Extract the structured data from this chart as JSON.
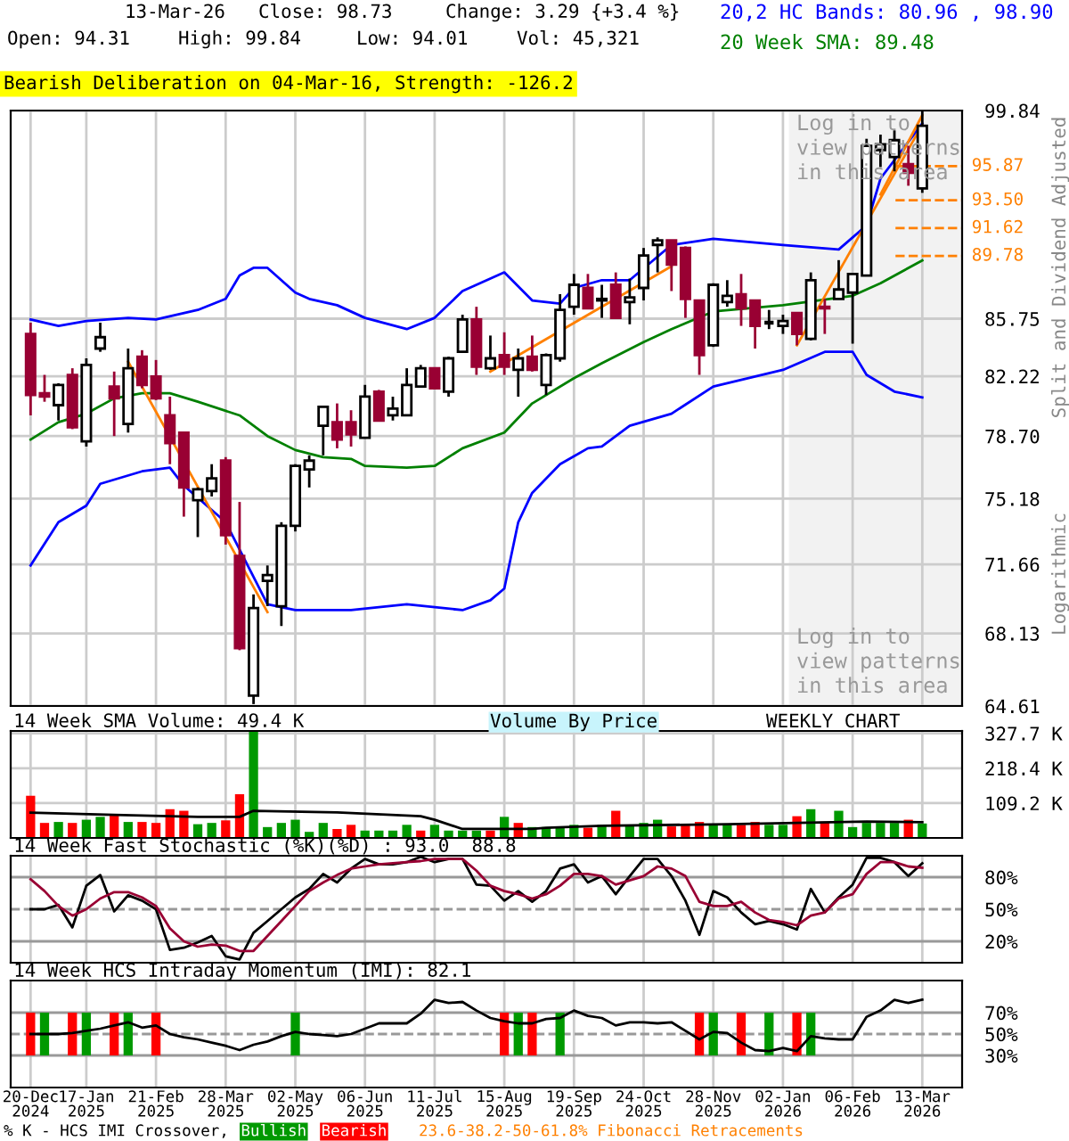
{
  "chart_data": [
    {
      "type": "candlestick",
      "annotations": [
        "13-Mar-26",
        "Close: 98.73",
        "Change: 3.29 {+3.4 %}",
        "Open: 94.31",
        "High: 99.84",
        "Low: 94.01",
        "Vol: 45,321",
        "Bearish Deliberation on 04-Mar-16, Strength: -126.2",
        "Log in to\nview patterns\nin this area",
        "Log in to\nview patterns\nin this area",
        "Logarithmic",
        "23.6-38.2-50-61.8% Fibonacci Retracements"
      ],
      "ylabel": "Split and Dividend Adjusted",
      "x": [
        "2024-12-20",
        "2024-12-27",
        "2025-01-03",
        "2025-01-10",
        "2025-01-17",
        "2025-01-24",
        "2025-01-31",
        "2025-02-07",
        "2025-02-14",
        "2025-02-21",
        "2025-02-28",
        "2025-03-07",
        "2025-03-14",
        "2025-03-21",
        "2025-03-28",
        "2025-04-04",
        "2025-04-11",
        "2025-04-18",
        "2025-04-25",
        "2025-05-02",
        "2025-05-09",
        "2025-05-16",
        "2025-05-23",
        "2025-05-30",
        "2025-06-06",
        "2025-06-13",
        "2025-06-20",
        "2025-06-27",
        "2025-07-04",
        "2025-07-11",
        "2025-07-18",
        "2025-07-25",
        "2025-08-01",
        "2025-08-08",
        "2025-08-15",
        "2025-08-22",
        "2025-08-29",
        "2025-09-05",
        "2025-09-12",
        "2025-09-19",
        "2025-09-26",
        "2025-10-03",
        "2025-10-10",
        "2025-10-17",
        "2025-10-24",
        "2025-10-31",
        "2025-11-07",
        "2025-11-14",
        "2025-11-21",
        "2025-11-28",
        "2025-12-05",
        "2025-12-12",
        "2025-12-19",
        "2025-12-26",
        "2026-01-02",
        "2026-01-09",
        "2026-01-16",
        "2026-01-23",
        "2026-01-30",
        "2026-02-06",
        "2026-02-13",
        "2026-02-20",
        "2026-02-27",
        "2026-03-06",
        "2026-03-13"
      ],
      "ohlc": [
        [
          84.8,
          85.5,
          79.9,
          81.1
        ],
        [
          81.2,
          82.3,
          80.7,
          81.0
        ],
        [
          80.5,
          81.8,
          79.6,
          81.7
        ],
        [
          82.3,
          82.7,
          79.1,
          79.2
        ],
        [
          78.4,
          83.3,
          78.1,
          82.9
        ],
        [
          83.9,
          85.5,
          83.7,
          84.6
        ],
        [
          81.6,
          82.5,
          78.7,
          80.9
        ],
        [
          79.4,
          83.9,
          78.9,
          82.7
        ],
        [
          83.4,
          83.8,
          81.5,
          81.7
        ],
        [
          82.2,
          83.2,
          80.8,
          80.9
        ],
        [
          79.9,
          81.0,
          77.1,
          78.3
        ],
        [
          78.9,
          78.9,
          74.2,
          75.8
        ],
        [
          75.1,
          75.8,
          73.1,
          75.7
        ],
        [
          75.6,
          77.1,
          75.3,
          76.3
        ],
        [
          77.3,
          77.5,
          72.7,
          73.2
        ],
        [
          72.1,
          75.0,
          67.3,
          67.4
        ],
        [
          65.1,
          70.1,
          64.7,
          69.4
        ],
        [
          70.8,
          71.6,
          69.5,
          71.1
        ],
        [
          69.5,
          73.9,
          68.5,
          73.7
        ],
        [
          73.7,
          77.1,
          73.4,
          77.0
        ],
        [
          76.8,
          77.6,
          75.8,
          77.3
        ],
        [
          79.3,
          80.4,
          77.6,
          80.4
        ],
        [
          79.5,
          80.6,
          78.0,
          78.5
        ],
        [
          79.5,
          80.2,
          78.1,
          78.8
        ],
        [
          78.6,
          81.7,
          78.6,
          81.0
        ],
        [
          81.3,
          81.4,
          79.6,
          79.6
        ],
        [
          79.9,
          81.0,
          79.6,
          80.3
        ],
        [
          79.9,
          82.7,
          79.9,
          81.7
        ],
        [
          81.6,
          82.9,
          81.6,
          82.7
        ],
        [
          82.7,
          82.7,
          81.5,
          81.5
        ],
        [
          81.3,
          83.4,
          81.0,
          83.3
        ],
        [
          83.7,
          86.0,
          83.7,
          85.7
        ],
        [
          85.7,
          86.5,
          82.3,
          82.8
        ],
        [
          82.7,
          84.7,
          82.6,
          83.3
        ],
        [
          83.5,
          84.9,
          82.3,
          82.8
        ],
        [
          82.6,
          83.9,
          81.0,
          83.3
        ],
        [
          83.4,
          84.7,
          82.5,
          82.6
        ],
        [
          81.7,
          83.6,
          81.1,
          83.5
        ],
        [
          83.3,
          87.3,
          83.1,
          86.3
        ],
        [
          86.5,
          88.6,
          86.0,
          87.9
        ],
        [
          87.7,
          88.6,
          86.4,
          86.4
        ],
        [
          86.9,
          87.9,
          85.8,
          87.0
        ],
        [
          87.9,
          88.7,
          85.8,
          85.8
        ],
        [
          86.8,
          88.3,
          85.4,
          87.1
        ],
        [
          87.7,
          90.3,
          86.9,
          89.8
        ],
        [
          90.5,
          91.0,
          88.7,
          90.8
        ],
        [
          90.8,
          90.8,
          87.5,
          89.2
        ],
        [
          90.3,
          90.4,
          85.8,
          87.0
        ],
        [
          86.9,
          86.9,
          82.3,
          83.5
        ],
        [
          84.1,
          88.0,
          84.0,
          87.9
        ],
        [
          86.8,
          88.2,
          86.5,
          87.2
        ],
        [
          87.3,
          88.6,
          85.3,
          86.4
        ],
        [
          86.9,
          86.9,
          83.9,
          85.3
        ],
        [
          85.5,
          86.3,
          85.1,
          85.5
        ],
        [
          85.3,
          86.0,
          84.8,
          85.6
        ],
        [
          86.1,
          86.1,
          84.1,
          84.8
        ],
        [
          84.5,
          88.7,
          84.4,
          88.2
        ],
        [
          86.5,
          87.0,
          84.8,
          86.4
        ],
        [
          87.0,
          89.5,
          87.0,
          87.6
        ],
        [
          87.4,
          88.6,
          84.2,
          88.6
        ],
        [
          88.5,
          97.8,
          88.5,
          97.3
        ],
        [
          97.0,
          98.1,
          95.8,
          97.4
        ],
        [
          96.5,
          98.4,
          95.5,
          97.7
        ],
        [
          96.0,
          97.3,
          94.5,
          95.4
        ],
        [
          94.31,
          99.84,
          94.01,
          98.73
        ]
      ],
      "colors": [
        "#990033",
        "#990033",
        "#ffffff",
        "#990033",
        "#ffffff",
        "#ffffff",
        "#990033",
        "#ffffff",
        "#990033",
        "#990033",
        "#990033",
        "#990033",
        "#ffffff",
        "#ffffff",
        "#990033",
        "#990033",
        "#ffffff",
        "#ffffff",
        "#ffffff",
        "#ffffff",
        "#ffffff",
        "#ffffff",
        "#990033",
        "#990033",
        "#ffffff",
        "#990033",
        "#ffffff",
        "#ffffff",
        "#ffffff",
        "#990033",
        "#ffffff",
        "#ffffff",
        "#990033",
        "#ffffff",
        "#990033",
        "#ffffff",
        "#990033",
        "#ffffff",
        "#ffffff",
        "#ffffff",
        "#990033",
        "#ffffff",
        "#990033",
        "#ffffff",
        "#ffffff",
        "#ffffff",
        "#990033",
        "#990033",
        "#990033",
        "#ffffff",
        "#ffffff",
        "#990033",
        "#990033",
        "#000000",
        "#ffffff",
        "#990033",
        "#ffffff",
        "#990033",
        "#ffffff",
        "#ffffff",
        "#ffffff",
        "#ffffff",
        "#ffffff",
        "#990033",
        "#ffffff"
      ],
      "series": [
        {
          "type": "line",
          "name": "20,2 HC Bands: 80.96 , 98.90",
          "color": "#0000ff",
          "x": [
            "2024-12-20",
            "2025-01-03",
            "2025-01-17",
            "2025-02-07",
            "2025-02-21",
            "2025-03-14",
            "2025-03-28",
            "2025-04-04",
            "2025-04-11",
            "2025-04-18",
            "2025-05-02",
            "2025-05-09",
            "2025-05-23",
            "2025-06-06",
            "2025-06-27",
            "2025-07-11",
            "2025-07-25",
            "2025-08-15",
            "2025-08-29",
            "2025-09-12",
            "2025-09-19",
            "2025-10-03",
            "2025-10-17",
            "2025-11-07",
            "2025-11-28",
            "2026-01-02",
            "2026-01-30",
            "2026-02-13",
            "2026-02-20",
            "2026-03-13"
          ],
          "values": [
            85.7,
            85.3,
            85.6,
            85.8,
            85.7,
            86.3,
            87.0,
            88.5,
            89.0,
            89.0,
            87.4,
            87.0,
            86.6,
            85.8,
            85.1,
            85.8,
            87.5,
            88.7,
            86.9,
            86.7,
            87.7,
            88.2,
            88.2,
            90.5,
            90.9,
            90.5,
            90.2,
            91.8,
            95.0,
            98.9
          ]
        },
        {
          "type": "line",
          "color": "#0000ff",
          "x": [
            "2024-12-20",
            "2025-01-03",
            "2025-01-17",
            "2025-01-24",
            "2025-02-14",
            "2025-02-28",
            "2025-03-07",
            "2025-03-28",
            "2025-04-11",
            "2025-04-18",
            "2025-05-02",
            "2025-05-30",
            "2025-06-27",
            "2025-07-25",
            "2025-08-08",
            "2025-08-15",
            "2025-08-22",
            "2025-08-29",
            "2025-09-12",
            "2025-09-26",
            "2025-10-03",
            "2025-10-17",
            "2025-11-07",
            "2025-11-28",
            "2026-01-02",
            "2026-01-23",
            "2026-02-06",
            "2026-02-13",
            "2026-02-27",
            "2026-03-13"
          ],
          "values": [
            71.6,
            73.9,
            74.8,
            76.0,
            76.7,
            76.9,
            75.9,
            73.9,
            71.0,
            69.6,
            69.3,
            69.3,
            69.6,
            69.3,
            69.8,
            70.4,
            73.9,
            75.5,
            77.1,
            78.0,
            78.1,
            79.3,
            80.0,
            81.6,
            82.6,
            83.7,
            83.7,
            82.3,
            81.3,
            80.96
          ]
        },
        {
          "type": "line",
          "name": "20 Week SMA: 89.48",
          "color": "#008000",
          "x": [
            "2024-12-20",
            "2025-01-03",
            "2025-01-17",
            "2025-01-31",
            "2025-02-14",
            "2025-02-28",
            "2025-03-14",
            "2025-04-04",
            "2025-04-18",
            "2025-05-02",
            "2025-05-16",
            "2025-05-30",
            "2025-06-06",
            "2025-06-27",
            "2025-07-11",
            "2025-07-25",
            "2025-08-15",
            "2025-08-29",
            "2025-09-19",
            "2025-10-03",
            "2025-10-24",
            "2025-11-07",
            "2025-11-28",
            "2026-01-02",
            "2026-02-06",
            "2026-02-20",
            "2026-03-13"
          ],
          "values": [
            78.5,
            79.5,
            80.0,
            80.9,
            81.2,
            81.2,
            80.7,
            79.9,
            78.7,
            77.9,
            77.5,
            77.4,
            77.0,
            76.9,
            77.0,
            78.0,
            78.9,
            80.6,
            82.1,
            83.0,
            84.3,
            85.1,
            86.2,
            86.6,
            87.2,
            88.0,
            89.48
          ]
        },
        {
          "type": "line",
          "color": "#ff8000",
          "x": [
            "2025-02-07",
            "2025-04-18"
          ],
          "values": [
            83.1,
            69.2
          ]
        },
        {
          "type": "line",
          "color": "#ff8000",
          "x": [
            "2025-08-08",
            "2025-11-07"
          ],
          "values": [
            82.5,
            89.1
          ]
        },
        {
          "type": "line",
          "color": "#ff8000",
          "x": [
            "2026-01-09",
            "2026-03-13"
          ],
          "values": [
            84.1,
            98.8
          ]
        },
        {
          "type": "line",
          "color": "#ff8000",
          "x": [
            "2026-02-20",
            "2026-03-13"
          ],
          "values": [
            93.9,
            99.5
          ]
        }
      ],
      "ylim": [
        64.61,
        99.84
      ],
      "log": true,
      "yticks": [
        64.61,
        68.13,
        71.66,
        75.18,
        {
          "value": 78.7,
          "label": "78.70"
        },
        82.22,
        85.75,
        99.84
      ],
      "xlim": [
        "2024-12-10",
        "2026-04-02"
      ],
      "xticks": [
        {
          "value": "2024-12-20",
          "label": null
        },
        {
          "value": "2025-01-17",
          "label": null
        },
        {
          "value": "2025-02-21",
          "label": null
        },
        {
          "value": "2025-03-28",
          "label": null
        },
        {
          "value": "2025-05-02",
          "label": null
        },
        {
          "value": "2025-06-06",
          "label": null
        },
        {
          "value": "2025-07-11",
          "label": null
        },
        {
          "value": "2025-08-15",
          "label": null
        },
        {
          "value": "2025-09-19",
          "label": null
        },
        {
          "value": "2025-10-24",
          "label": null
        },
        {
          "value": "2025-11-28",
          "label": null
        },
        {
          "value": "2026-01-02",
          "label": null
        },
        {
          "value": "2026-02-06",
          "label": null
        },
        {
          "value": "2026-03-13",
          "label": null
        }
      ],
      "tick_labels": "y",
      "grid": true,
      "legend": "top right",
      "bands": [
        {
          "axis": "x",
          "from": "2026-01-05",
          "to": "2026-04-02",
          "color": "#f2f2f2"
        }
      ],
      "ref_lines": [
        {
          "axis": "y",
          "value": 95.87,
          "label": "95.87",
          "color": "#ff8000",
          "line_style": "dashed"
        },
        {
          "axis": "y",
          "value": 93.5,
          "label": "93.50",
          "color": "#ff8000",
          "line_style": "dashed"
        },
        {
          "axis": "y",
          "value": 91.62,
          "label": "91.62",
          "color": "#ff8000",
          "line_style": "dashed"
        },
        {
          "axis": "y",
          "value": 89.78,
          "label": "89.78",
          "color": "#ff8000",
          "line_style": "dashed"
        }
      ]
    },
    {
      "type": "bar",
      "title": "14 Week SMA Volume: 49.4 K",
      "annotations": [
        "Volume By Price",
        "WEEKLY CHART"
      ],
      "x": [
        "2024-12-20",
        "2024-12-27",
        "2025-01-03",
        "2025-01-10",
        "2025-01-17",
        "2025-01-24",
        "2025-01-31",
        "2025-02-07",
        "2025-02-14",
        "2025-02-21",
        "2025-02-28",
        "2025-03-07",
        "2025-03-14",
        "2025-03-21",
        "2025-03-28",
        "2025-04-04",
        "2025-04-11",
        "2025-04-18",
        "2025-04-25",
        "2025-05-02",
        "2025-05-09",
        "2025-05-16",
        "2025-05-23",
        "2025-05-30",
        "2025-06-06",
        "2025-06-13",
        "2025-06-20",
        "2025-06-27",
        "2025-07-04",
        "2025-07-11",
        "2025-07-18",
        "2025-07-25",
        "2025-08-01",
        "2025-08-08",
        "2025-08-15",
        "2025-08-22",
        "2025-08-29",
        "2025-09-05",
        "2025-09-12",
        "2025-09-19",
        "2025-09-26",
        "2025-10-03",
        "2025-10-10",
        "2025-10-17",
        "2025-10-24",
        "2025-10-31",
        "2025-11-07",
        "2025-11-14",
        "2025-11-21",
        "2025-11-28",
        "2025-12-05",
        "2025-12-12",
        "2025-12-19",
        "2025-12-26",
        "2026-01-02",
        "2026-01-09",
        "2026-01-16",
        "2026-01-23",
        "2026-01-30",
        "2026-02-06",
        "2026-02-13",
        "2026-02-20",
        "2026-02-27",
        "2026-03-06",
        "2026-03-13"
      ],
      "series": [
        {
          "values": [
            132,
            47,
            50,
            47,
            57,
            66,
            73,
            50,
            50,
            47,
            90,
            85,
            43,
            47,
            55,
            137,
            333,
            34,
            47,
            57,
            19,
            47,
            28,
            41,
            23,
            23,
            23,
            41,
            23,
            41,
            23,
            23,
            23,
            23,
            66,
            47,
            34,
            34,
            34,
            41,
            32,
            41,
            85,
            38,
            47,
            57,
            36,
            41,
            50,
            41,
            41,
            41,
            50,
            41,
            41,
            68,
            90,
            51,
            85,
            34,
            47,
            47,
            47,
            57,
            45.3
          ],
          "colors": [
            "#ff0000",
            "#ff0000",
            "#009900",
            "#ff0000",
            "#009900",
            "#009900",
            "#ff0000",
            "#009900",
            "#ff0000",
            "#ff0000",
            "#ff0000",
            "#ff0000",
            "#009900",
            "#009900",
            "#ff0000",
            "#ff0000",
            "#009900",
            "#009900",
            "#009900",
            "#009900",
            "#009900",
            "#009900",
            "#ff0000",
            "#ff0000",
            "#009900",
            "#009900",
            "#009900",
            "#009900",
            "#ff0000",
            "#009900",
            "#009900",
            "#009900",
            "#009900",
            "#ff0000",
            "#009900",
            "#ff0000",
            "#009900",
            "#009900",
            "#009900",
            "#009900",
            "#ff0000",
            "#009900",
            "#ff0000",
            "#009900",
            "#009900",
            "#009900",
            "#ff0000",
            "#ff0000",
            "#ff0000",
            "#009900",
            "#009900",
            "#ff0000",
            "#ff0000",
            "#009900",
            "#009900",
            "#ff0000",
            "#009900",
            "#ff0000",
            "#009900",
            "#009900",
            "#009900",
            "#009900",
            "#009900",
            "#ff0000",
            "#009900"
          ]
        },
        {
          "type": "line",
          "color": "#000000",
          "x": [
            "2024-12-20",
            "2025-01-31",
            "2025-03-14",
            "2025-04-04",
            "2025-04-11",
            "2025-05-23",
            "2025-07-04",
            "2025-07-11",
            "2025-07-25",
            "2025-08-29",
            "2025-09-05",
            "2025-10-03",
            "2025-12-05",
            "2026-02-13",
            "2026-03-13"
          ],
          "values": [
            79,
            72,
            66,
            66,
            85,
            80,
            68,
            57,
            28,
            28,
            32,
            38,
            43,
            51,
            49.4
          ]
        }
      ],
      "ylim": [
        0,
        335
      ],
      "yticks": [
        {
          "value": 109.2,
          "label": "109.2 K"
        },
        {
          "value": 218.4,
          "label": "218.4 K"
        },
        {
          "value": 327.7,
          "label": "327.7 K"
        }
      ],
      "xlim": [
        "2024-12-10",
        "2026-04-02"
      ],
      "xticks": [
        {
          "value": "2024-12-20",
          "label": null
        },
        {
          "value": "2025-01-17",
          "label": null
        },
        {
          "value": "2025-02-21",
          "label": null
        },
        {
          "value": "2025-03-28",
          "label": null
        },
        {
          "value": "2025-05-02",
          "label": null
        },
        {
          "value": "2025-06-06",
          "label": null
        },
        {
          "value": "2025-07-11",
          "label": null
        },
        {
          "value": "2025-08-15",
          "label": null
        },
        {
          "value": "2025-09-19",
          "label": null
        },
        {
          "value": "2025-10-24",
          "label": null
        },
        {
          "value": "2025-11-28",
          "label": null
        },
        {
          "value": "2026-01-02",
          "label": null
        },
        {
          "value": "2026-02-06",
          "label": null
        },
        {
          "value": "2026-03-13",
          "label": null
        }
      ],
      "tick_labels": "y",
      "grid": true
    },
    {
      "type": "line",
      "title": "14 Week Fast Stochastic (%K)(%D) : 93.0  88.8",
      "x": [
        "2024-12-20",
        "2024-12-27",
        "2025-01-03",
        "2025-01-10",
        "2025-01-17",
        "2025-01-24",
        "2025-01-31",
        "2025-02-07",
        "2025-02-14",
        "2025-02-21",
        "2025-02-28",
        "2025-03-07",
        "2025-03-14",
        "2025-03-21",
        "2025-03-28",
        "2025-04-04",
        "2025-04-11",
        "2025-04-18",
        "2025-04-25",
        "2025-05-02",
        "2025-05-09",
        "2025-05-16",
        "2025-05-23",
        "2025-05-30",
        "2025-06-06",
        "2025-06-13",
        "2025-06-20",
        "2025-06-27",
        "2025-07-04",
        "2025-07-11",
        "2025-07-18",
        "2025-07-25",
        "2025-08-01",
        "2025-08-08",
        "2025-08-15",
        "2025-08-22",
        "2025-08-29",
        "2025-09-05",
        "2025-09-12",
        "2025-09-19",
        "2025-09-26",
        "2025-10-03",
        "2025-10-10",
        "2025-10-17",
        "2025-10-24",
        "2025-10-31",
        "2025-11-07",
        "2025-11-14",
        "2025-11-21",
        "2025-11-28",
        "2025-12-05",
        "2025-12-12",
        "2025-12-19",
        "2025-12-26",
        "2026-01-02",
        "2026-01-09",
        "2026-01-16",
        "2026-01-23",
        "2026-01-30",
        "2026-02-06",
        "2026-02-13",
        "2026-02-20",
        "2026-02-27",
        "2026-03-06",
        "2026-03-13"
      ],
      "series": [
        {
          "color": "#000000",
          "values": [
            50,
            50,
            54,
            33,
            72,
            82,
            48,
            63,
            58,
            50,
            12,
            14,
            19,
            25,
            6,
            3,
            28,
            39,
            50,
            61,
            69,
            83,
            75,
            88,
            97,
            92,
            92,
            94,
            99,
            94,
            97,
            97,
            73,
            72,
            58,
            67,
            57,
            67,
            88,
            92,
            75,
            81,
            64,
            81,
            97,
            97,
            81,
            58,
            26,
            67,
            61,
            47,
            36,
            39,
            36,
            31,
            69,
            47,
            61,
            73,
            98,
            98,
            94,
            81,
            93.0
          ]
        },
        {
          "color": "#990033",
          "values": [
            78,
            67,
            53,
            44,
            50,
            60,
            66,
            66,
            61,
            53,
            32,
            20,
            15,
            17,
            16,
            11,
            11,
            25,
            39,
            53,
            67,
            75,
            82,
            88,
            90,
            92,
            93,
            94,
            95,
            97,
            97,
            97,
            86,
            72,
            67,
            64,
            60,
            64,
            72,
            83,
            83,
            81,
            73,
            77,
            81,
            90,
            88,
            81,
            57,
            53,
            53,
            57,
            47,
            40,
            38,
            35,
            44,
            47,
            60,
            64,
            83,
            94,
            94,
            90,
            88.8
          ]
        }
      ],
      "ylim": [
        0,
        100
      ],
      "yticks": [
        {
          "value": 20,
          "label": "20%"
        },
        {
          "value": 50,
          "label": "50%"
        },
        {
          "value": 80,
          "label": "80%"
        }
      ],
      "xlim": [
        "2024-12-10",
        "2026-04-02"
      ],
      "xticks": [
        {
          "value": "2024-12-20",
          "label": null
        },
        {
          "value": "2025-01-17",
          "label": null
        },
        {
          "value": "2025-02-21",
          "label": null
        },
        {
          "value": "2025-03-28",
          "label": null
        },
        {
          "value": "2025-05-02",
          "label": null
        },
        {
          "value": "2025-06-06",
          "label": null
        },
        {
          "value": "2025-07-11",
          "label": null
        },
        {
          "value": "2025-08-15",
          "label": null
        },
        {
          "value": "2025-09-19",
          "label": null
        },
        {
          "value": "2025-10-24",
          "label": null
        },
        {
          "value": "2025-11-28",
          "label": null
        },
        {
          "value": "2026-01-02",
          "label": null
        },
        {
          "value": "2026-02-06",
          "label": null
        },
        {
          "value": "2026-03-13",
          "label": null
        }
      ],
      "tick_labels": "y",
      "grid": "x",
      "ref_lines": [
        {
          "axis": "y",
          "value": 20,
          "color": "#999999"
        },
        {
          "axis": "y",
          "value": 50,
          "color": "#999999",
          "line_style": "dashed"
        },
        {
          "axis": "y",
          "value": 80,
          "color": "#999999"
        }
      ]
    },
    {
      "type": "line",
      "title": "14 Week HCS Intraday Momentum (IMI): 82.1",
      "legend": "bottom",
      "legend_title": "% K - HCS IMI Crossover,",
      "x": [
        "2024-12-20",
        "2024-12-27",
        "2025-01-03",
        "2025-01-10",
        "2025-01-17",
        "2025-01-24",
        "2025-01-31",
        "2025-02-07",
        "2025-02-14",
        "2025-02-21",
        "2025-02-28",
        "2025-03-07",
        "2025-03-14",
        "2025-03-21",
        "2025-03-28",
        "2025-04-04",
        "2025-04-11",
        "2025-04-18",
        "2025-04-25",
        "2025-05-02",
        "2025-05-09",
        "2025-05-16",
        "2025-05-23",
        "2025-05-30",
        "2025-06-06",
        "2025-06-13",
        "2025-06-20",
        "2025-06-27",
        "2025-07-04",
        "2025-07-11",
        "2025-07-18",
        "2025-07-25",
        "2025-08-01",
        "2025-08-08",
        "2025-08-15",
        "2025-08-22",
        "2025-08-29",
        "2025-09-05",
        "2025-09-12",
        "2025-09-19",
        "2025-09-26",
        "2025-10-03",
        "2025-10-10",
        "2025-10-17",
        "2025-10-24",
        "2025-10-31",
        "2025-11-07",
        "2025-11-14",
        "2025-11-21",
        "2025-11-28",
        "2025-12-05",
        "2025-12-12",
        "2025-12-19",
        "2025-12-26",
        "2026-01-02",
        "2026-01-09",
        "2026-01-16",
        "2026-01-23",
        "2026-01-30",
        "2026-02-06",
        "2026-02-13",
        "2026-02-20",
        "2026-02-27",
        "2026-03-06",
        "2026-03-13"
      ],
      "series": [
        {
          "color": "#000000",
          "values": [
            50,
            50,
            50,
            51,
            53,
            55,
            58,
            61,
            56,
            58,
            50,
            47,
            45,
            42,
            39,
            35,
            40,
            43,
            48,
            52,
            50,
            49,
            48,
            50,
            55,
            60,
            60,
            60,
            69,
            82,
            79,
            80,
            72,
            65,
            62,
            60,
            60,
            64,
            65,
            72,
            67,
            65,
            58,
            61,
            61,
            60,
            61,
            53,
            45,
            52,
            51,
            42,
            35,
            34,
            37,
            34,
            48,
            46,
            45,
            45,
            66,
            72,
            82,
            79,
            82.1
          ]
        },
        {
          "type": "bar",
          "name": "Bullish",
          "color": "#009900",
          "x": [
            "2024-12-27",
            "2025-01-17",
            "2025-02-07",
            "2025-05-02",
            "2025-08-22",
            "2025-09-12",
            "2025-11-28",
            "2025-12-26",
            "2026-01-16"
          ],
          "base": [
            30,
            30,
            30,
            30,
            30,
            30,
            30,
            30,
            30
          ],
          "values": [
            40,
            40,
            40,
            40,
            40,
            40,
            40,
            40,
            40
          ]
        },
        {
          "type": "bar",
          "name": "Bearish",
          "color": "#ff0000",
          "x": [
            "2024-12-20",
            "2025-01-10",
            "2025-01-31",
            "2025-02-21",
            "2025-08-15",
            "2025-08-29",
            "2025-11-21",
            "2025-12-12",
            "2026-01-09"
          ],
          "base": [
            30,
            30,
            30,
            30,
            30,
            30,
            30,
            30,
            30
          ],
          "values": [
            40,
            40,
            40,
            40,
            40,
            40,
            40,
            40,
            40
          ]
        }
      ],
      "ylim": [
        0,
        100
      ],
      "yticks": [
        {
          "value": 30,
          "label": "30%"
        },
        {
          "value": 50,
          "label": "50%"
        },
        {
          "value": 70,
          "label": "70%"
        }
      ],
      "xlim": [
        "2024-12-10",
        "2026-04-02"
      ],
      "xticks": [
        {
          "value": "2024-12-20",
          "label": "20-Dec\n2024"
        },
        {
          "value": "2025-01-17",
          "label": "17-Jan\n2025"
        },
        {
          "value": "2025-02-21",
          "label": "21-Feb\n2025"
        },
        {
          "value": "2025-03-28",
          "label": "28-Mar\n2025"
        },
        {
          "value": "2025-05-02",
          "label": "02-May\n2025"
        },
        {
          "value": "2025-06-06",
          "label": "06-Jun\n2025"
        },
        {
          "value": "2025-07-11",
          "label": "11-Jul\n2025"
        },
        {
          "value": "2025-08-15",
          "label": "15-Aug\n2025"
        },
        {
          "value": "2025-09-19",
          "label": "19-Sep\n2025"
        },
        {
          "value": "2025-10-24",
          "label": "24-Oct\n2025"
        },
        {
          "value": "2025-11-28",
          "label": "28-Nov\n2025"
        },
        {
          "value": "2026-01-02",
          "label": "02-Jan\n2026"
        },
        {
          "value": "2026-02-06",
          "label": "06-Feb\n2026"
        },
        {
          "value": "2026-03-13",
          "label": "13-Mar\n2026"
        }
      ],
      "grid": "x",
      "ref_lines": [
        {
          "axis": "y",
          "value": 30,
          "color": "#999999"
        },
        {
          "axis": "y",
          "value": 50,
          "color": "#999999",
          "line_style": "dashed"
        },
        {
          "axis": "y",
          "value": 70,
          "color": "#999999"
        }
      ]
    }
  ]
}
